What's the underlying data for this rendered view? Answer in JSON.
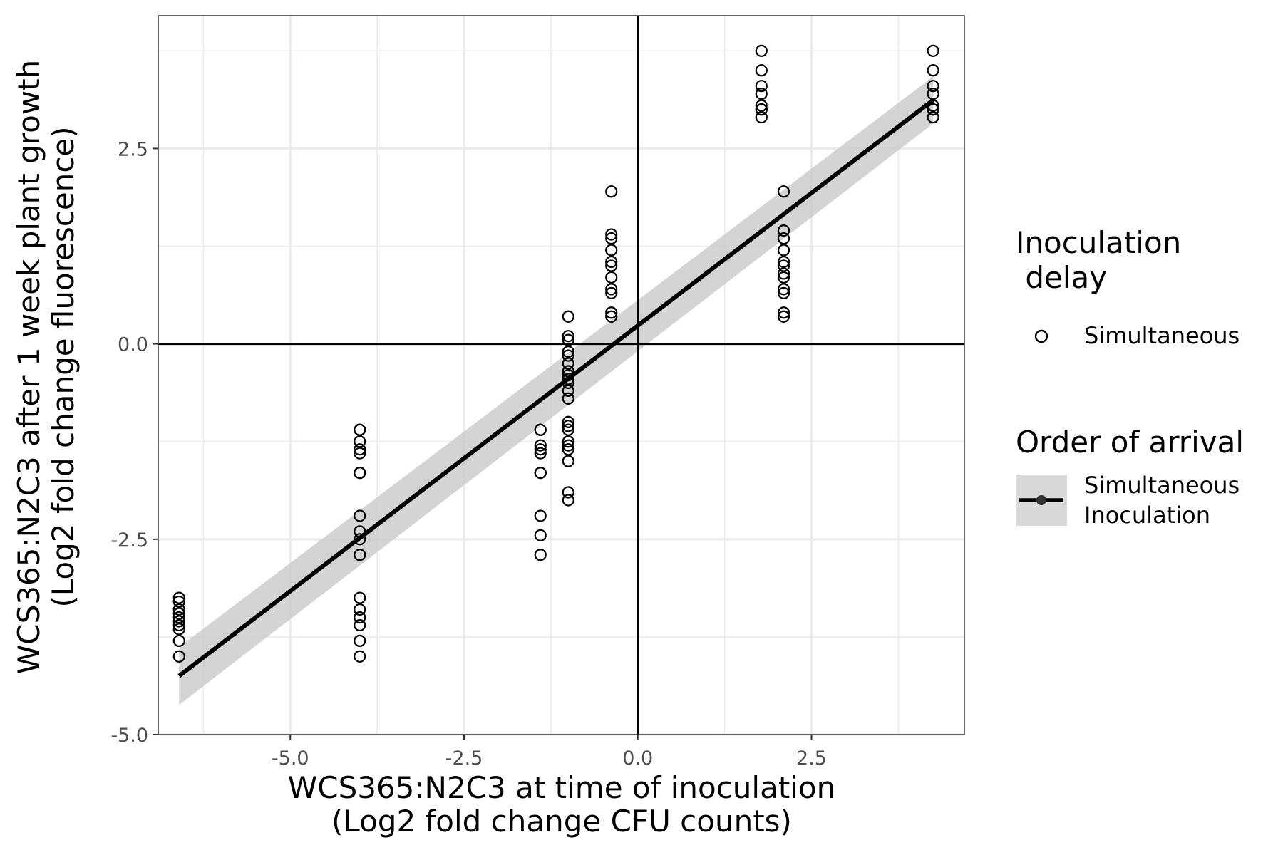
{
  "chart_data": {
    "type": "scatter",
    "title": "",
    "xlabel": [
      "WCS365:N2C3 at time of inoculation",
      "(Log2 fold change CFU counts)"
    ],
    "ylabel": [
      "WCS365:N2C3 after 1 week plant growth",
      "(Log2 fold change fluorescence)"
    ],
    "xlim": [
      -6.9,
      4.7
    ],
    "ylim": [
      -5.0,
      4.2
    ],
    "x_ticks": [
      -5.0,
      -2.5,
      0.0,
      2.5
    ],
    "x_tick_labels": [
      "-5.0",
      "-2.5",
      "0.0",
      "2.5"
    ],
    "y_ticks": [
      -5.0,
      -2.5,
      0.0,
      2.5
    ],
    "y_tick_labels": [
      "-5.0",
      "-2.5",
      "0.0",
      "2.5"
    ],
    "grid": true,
    "reference_lines": {
      "x": 0,
      "y": 0
    },
    "legend_position": "right",
    "legends": [
      {
        "title": [
          "Inoculation",
          " delay"
        ],
        "entries": [
          "Simultaneous"
        ]
      },
      {
        "title": [
          "Order of arrival"
        ],
        "entries": [
          [
            "Simultaneous",
            "Inoculation"
          ]
        ]
      }
    ],
    "series": [
      {
        "name": "Simultaneous",
        "kind": "points",
        "x": [
          -6.6,
          -6.6,
          -6.6,
          -6.6,
          -6.6,
          -6.6,
          -6.6,
          -6.6,
          -6.6,
          -6.6,
          -4.0,
          -4.0,
          -4.0,
          -4.0,
          -4.0,
          -4.0,
          -4.0,
          -4.0,
          -4.0,
          -4.0,
          -4.0,
          -4.0,
          -4.0,
          -4.0,
          -4.0,
          -4.0,
          -4.0,
          -1.4,
          -1.4,
          -1.4,
          -1.4,
          -1.4,
          -1.4,
          -1.4,
          -1.4,
          -1.4,
          -1.4,
          -1.0,
          -1.0,
          -1.0,
          -1.0,
          -1.0,
          -1.0,
          -1.0,
          -1.0,
          -1.0,
          -1.0,
          -1.0,
          -1.0,
          -1.0,
          -1.0,
          -1.0,
          -1.0,
          -1.0,
          -1.0,
          -1.0,
          -1.0,
          -1.0,
          -1.0,
          -0.38,
          -0.38,
          -0.38,
          -0.38,
          -0.38,
          -0.38,
          -0.38,
          -0.38,
          -0.38,
          -0.38,
          -0.38,
          1.78,
          1.78,
          1.78,
          1.78,
          1.78,
          1.78,
          1.78,
          1.78,
          2.1,
          2.1,
          2.1,
          2.1,
          2.1,
          2.1,
          2.1,
          2.1,
          2.1,
          2.1,
          2.1,
          2.1,
          4.25,
          4.25,
          4.25,
          4.25,
          4.25,
          4.25,
          4.25,
          4.25
        ],
        "y": [
          -3.25,
          -3.3,
          -3.4,
          -3.45,
          -3.5,
          -3.55,
          -3.6,
          -3.65,
          -3.8,
          -4.0,
          -1.1,
          -1.1,
          -1.25,
          -1.35,
          -1.4,
          -1.65,
          -1.65,
          -2.2,
          -2.4,
          -2.5,
          -2.7,
          -3.25,
          -3.4,
          -3.5,
          -3.6,
          -3.8,
          -4.0,
          -1.1,
          -1.1,
          -1.3,
          -1.35,
          -1.4,
          -1.65,
          -1.65,
          -2.2,
          -2.45,
          -2.7,
          0.35,
          0.1,
          0.05,
          -0.1,
          -0.15,
          -0.25,
          -0.35,
          -0.4,
          -0.45,
          -0.5,
          -0.6,
          -0.7,
          -1.0,
          -1.05,
          -1.1,
          -1.25,
          -1.3,
          -1.35,
          -1.5,
          -1.9,
          -2.0,
          -1.0,
          1.95,
          1.4,
          1.35,
          1.2,
          1.05,
          1.0,
          0.85,
          0.7,
          0.65,
          0.4,
          0.35,
          3.75,
          3.5,
          3.3,
          3.2,
          3.05,
          3.0,
          3.0,
          2.9,
          1.95,
          1.45,
          1.35,
          1.2,
          1.05,
          1.0,
          0.9,
          0.85,
          0.7,
          0.65,
          0.4,
          0.35,
          3.75,
          3.5,
          3.3,
          3.2,
          3.05,
          3.0,
          3.0,
          2.9
        ]
      },
      {
        "name": "Simultaneous Inoculation",
        "kind": "linear-fit",
        "x": [
          -6.6,
          4.25
        ],
        "y": [
          -4.25,
          3.12
        ],
        "ci_lower": [
          -4.62,
          2.82
        ],
        "ci_upper": [
          -3.88,
          3.42
        ]
      }
    ],
    "colors": {
      "points": "#000000",
      "fit_line": "#000000",
      "ci_band": "#cccccc",
      "grid": "#ebebeb",
      "panel_border": "#333333",
      "tick_text": "#4d4d4d",
      "legend_key_bg": "#d9d9d9"
    }
  }
}
